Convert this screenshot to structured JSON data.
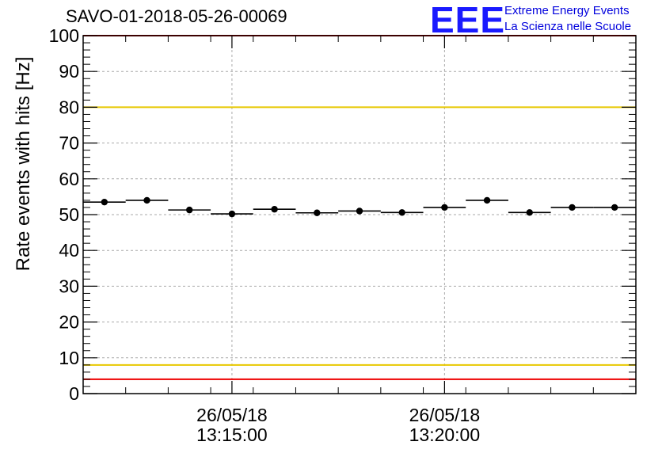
{
  "chart_data": {
    "type": "scatter",
    "title": "SAVO-01-2018-05-26-00069",
    "ylabel": "Rate events with hits [Hz]",
    "xlabel": "",
    "ylim": [
      0,
      100
    ],
    "yticks": [
      0,
      10,
      20,
      30,
      40,
      50,
      60,
      70,
      80,
      90,
      100
    ],
    "xticks": [
      {
        "index": 3,
        "date": "26/05/18",
        "time": "13:15:00"
      },
      {
        "index": 8,
        "date": "26/05/18",
        "time": "13:20:00"
      }
    ],
    "bins": 13,
    "values": [
      53.5,
      54.0,
      51.3,
      50.2,
      51.5,
      50.5,
      51.0,
      50.6,
      52.0,
      54.0,
      50.6,
      52.0,
      52.0
    ],
    "reference_lines": [
      {
        "value": 100,
        "color": "#ee0000"
      },
      {
        "value": 80,
        "color": "#e8c800"
      },
      {
        "value": 8,
        "color": "#e8c800"
      },
      {
        "value": 4,
        "color": "#ee0000"
      }
    ],
    "grid": true
  },
  "logo": {
    "mark": "EEE",
    "line1": "Extreme Energy Events",
    "line2": "La Scienza nelle Scuole"
  }
}
